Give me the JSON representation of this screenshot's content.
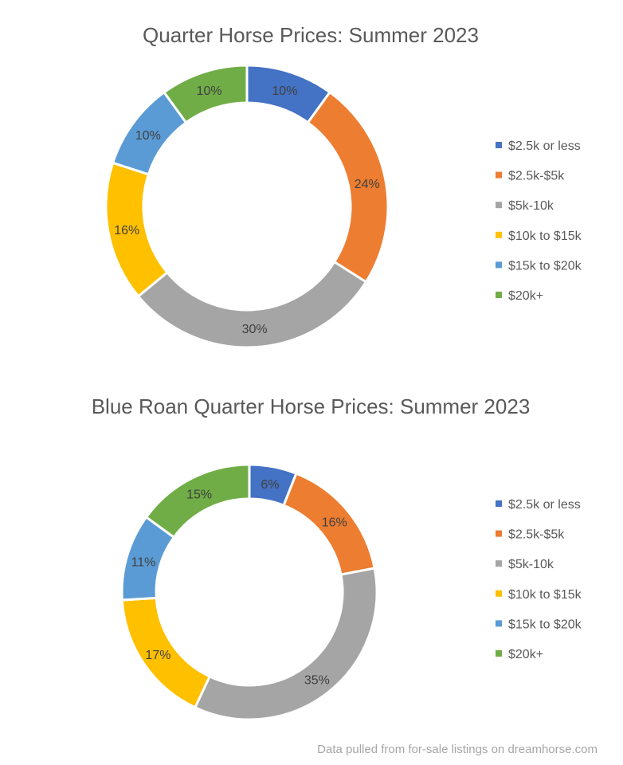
{
  "chart_data": [
    {
      "type": "pie",
      "variant": "doughnut",
      "title": "Quarter Horse Prices: Summer 2023",
      "categories": [
        "$2.5k or less",
        "$2.5k-$5k",
        "$5k-10k",
        "$10k to $15k",
        "$15k to $20k",
        "$20k+"
      ],
      "values": [
        10,
        24,
        30,
        16,
        10,
        10
      ],
      "data_labels": [
        "10%",
        "24%",
        "30%",
        "16%",
        "10%",
        "10%"
      ],
      "colors": [
        "#4472C4",
        "#ED7D31",
        "#A5A5A5",
        "#FFC000",
        "#5B9BD5",
        "#70AD47"
      ],
      "legend": "right"
    },
    {
      "type": "pie",
      "variant": "doughnut",
      "title": "Blue Roan Quarter Horse Prices: Summer 2023",
      "categories": [
        "$2.5k or less",
        "$2.5k-$5k",
        "$5k-10k",
        "$10k to $15k",
        "$15k to $20k",
        "$20k+"
      ],
      "values": [
        6,
        16,
        35,
        17,
        11,
        15
      ],
      "data_labels": [
        "6%",
        "16%",
        "35%",
        "17%",
        "11%",
        "15%"
      ],
      "colors": [
        "#4472C4",
        "#ED7D31",
        "#A5A5A5",
        "#FFC000",
        "#5B9BD5",
        "#70AD47"
      ],
      "legend": "right"
    }
  ],
  "footer": "Data pulled from for-sale listings on dreamhorse.com"
}
